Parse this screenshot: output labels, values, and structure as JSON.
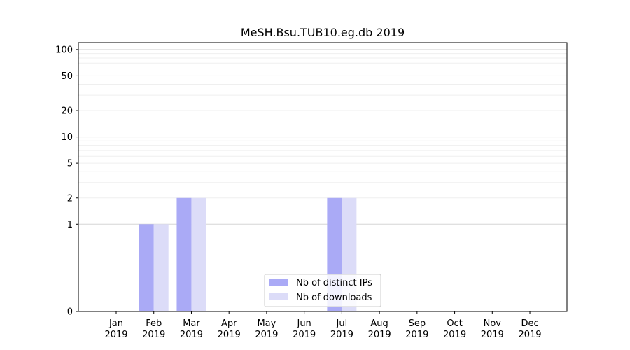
{
  "chart_data": {
    "type": "bar",
    "title": "MeSH.Bsu.TUB10.eg.db 2019",
    "xlabel": "",
    "ylabel": "",
    "yscale": "symlog",
    "ylim": [
      0,
      120
    ],
    "grid": true,
    "legend_position": "bottom-center",
    "categories": [
      {
        "month": "Jan",
        "year": "2019"
      },
      {
        "month": "Feb",
        "year": "2019"
      },
      {
        "month": "Mar",
        "year": "2019"
      },
      {
        "month": "Apr",
        "year": "2019"
      },
      {
        "month": "May",
        "year": "2019"
      },
      {
        "month": "Jun",
        "year": "2019"
      },
      {
        "month": "Jul",
        "year": "2019"
      },
      {
        "month": "Aug",
        "year": "2019"
      },
      {
        "month": "Sep",
        "year": "2019"
      },
      {
        "month": "Oct",
        "year": "2019"
      },
      {
        "month": "Nov",
        "year": "2019"
      },
      {
        "month": "Dec",
        "year": "2019"
      }
    ],
    "yticks": [
      "0",
      "1",
      "2",
      "5",
      "10",
      "20",
      "50",
      "100"
    ],
    "series": [
      {
        "name": "Nb of distinct IPs",
        "color": "#aaaaf6",
        "values": [
          0,
          1,
          2,
          0,
          0,
          0,
          2,
          0,
          0,
          0,
          0,
          0
        ]
      },
      {
        "name": "Nb of downloads",
        "color": "#dcdcf8",
        "values": [
          0,
          1,
          2,
          0,
          0,
          0,
          2,
          0,
          0,
          0,
          0,
          0
        ]
      }
    ]
  }
}
